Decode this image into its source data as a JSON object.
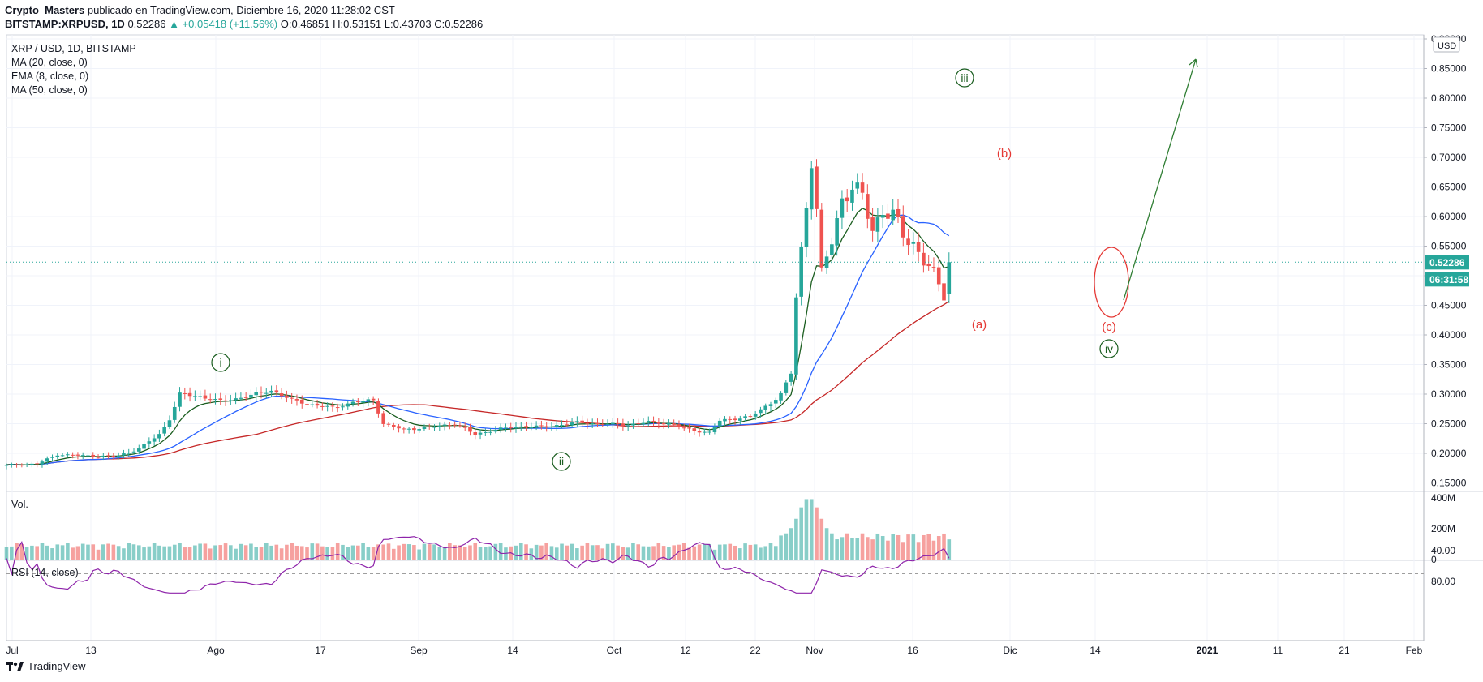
{
  "header": {
    "author": "Crypto_Masters",
    "published": "publicado en TradingView.com, Diciembre 16, 2020 11:28:02 CST",
    "symbol": "BITSTAMP:XRPUSD, 1D",
    "last": "0.52286",
    "change": "▲ +0.05418 (+11.56%)",
    "open": "O:0.46851",
    "high": "H:0.53151",
    "low": "L:0.43703",
    "close": "C:0.52286"
  },
  "legend": {
    "pair": "XRP / USD, 1D, BITSTAMP",
    "ma20": "MA (20, close, 0)",
    "ema8": "EMA (8, close, 0)",
    "ma50": "MA (50, close, 0)"
  },
  "volume_label": "Vol.",
  "rsi_label": "RSI (14, close)",
  "footer": {
    "brand": "TradingView"
  },
  "colors": {
    "up": "#26a69a",
    "down": "#ef5350",
    "ma20": "#2962ff",
    "ema8": "#1b5e20",
    "ma50": "#c62828",
    "rsi": "#8e24aa"
  },
  "chart_data": {
    "type": "candlestick",
    "currency": "USD",
    "price_axis": {
      "ylim": [
        0.15,
        0.9
      ],
      "ticks": [
        "0.15000",
        "0.20000",
        "0.25000",
        "0.30000",
        "0.35000",
        "0.40000",
        "0.45000",
        "0.50000",
        "0.55000",
        "0.60000",
        "0.65000",
        "0.70000",
        "0.75000",
        "0.80000",
        "0.85000",
        "0.90000"
      ]
    },
    "last_price_label": "0.52286",
    "countdown_label": "06:31:58",
    "volume_axis": {
      "ticks": [
        "0",
        "200M",
        "400M"
      ]
    },
    "rsi_axis": {
      "ticks": [
        "40.00",
        "80.00"
      ],
      "band": [
        30,
        70
      ]
    },
    "x_ticks": [
      "Jul",
      "13",
      "Ago",
      "17",
      "Sep",
      "14",
      "Oct",
      "12",
      "22",
      "Nov",
      "16",
      "Dic",
      "14",
      "2021",
      "11",
      "21",
      "Feb"
    ],
    "wave_labels": [
      "i",
      "ii",
      "iii",
      "iv"
    ],
    "correction_labels": [
      "(a)",
      "(b)",
      "(c)"
    ],
    "anchors": [
      {
        "day": 0,
        "c": 0.18
      },
      {
        "day": 6,
        "c": 0.182
      },
      {
        "day": 10,
        "c": 0.198
      },
      {
        "day": 18,
        "c": 0.195
      },
      {
        "day": 22,
        "c": 0.196
      },
      {
        "day": 26,
        "c": 0.208
      },
      {
        "day": 30,
        "c": 0.232
      },
      {
        "day": 32,
        "c": 0.258
      },
      {
        "day": 34,
        "c": 0.3
      },
      {
        "day": 38,
        "c": 0.296
      },
      {
        "day": 42,
        "c": 0.288
      },
      {
        "day": 46,
        "c": 0.294
      },
      {
        "day": 52,
        "c": 0.306
      },
      {
        "day": 56,
        "c": 0.29
      },
      {
        "day": 60,
        "c": 0.282
      },
      {
        "day": 64,
        "c": 0.277
      },
      {
        "day": 68,
        "c": 0.286
      },
      {
        "day": 72,
        "c": 0.29
      },
      {
        "day": 74,
        "c": 0.25
      },
      {
        "day": 78,
        "c": 0.24
      },
      {
        "day": 84,
        "c": 0.245
      },
      {
        "day": 88,
        "c": 0.25
      },
      {
        "day": 92,
        "c": 0.232
      },
      {
        "day": 96,
        "c": 0.24
      },
      {
        "day": 100,
        "c": 0.245
      },
      {
        "day": 106,
        "c": 0.245
      },
      {
        "day": 112,
        "c": 0.252
      },
      {
        "day": 116,
        "c": 0.25
      },
      {
        "day": 122,
        "c": 0.248
      },
      {
        "day": 126,
        "c": 0.253
      },
      {
        "day": 130,
        "c": 0.25
      },
      {
        "day": 134,
        "c": 0.24
      },
      {
        "day": 138,
        "c": 0.235
      },
      {
        "day": 140,
        "c": 0.255
      },
      {
        "day": 146,
        "c": 0.262
      },
      {
        "day": 150,
        "c": 0.285
      },
      {
        "day": 152,
        "c": 0.3
      },
      {
        "day": 154,
        "c": 0.335
      },
      {
        "day": 155,
        "c": 0.465
      },
      {
        "day": 157,
        "c": 0.62
      },
      {
        "day": 158,
        "c": 0.7
      },
      {
        "day": 159,
        "c": 0.61
      },
      {
        "day": 160,
        "c": 0.5
      },
      {
        "day": 162,
        "c": 0.56
      },
      {
        "day": 164,
        "c": 0.63
      },
      {
        "day": 166,
        "c": 0.65
      },
      {
        "day": 168,
        "c": 0.63
      },
      {
        "day": 170,
        "c": 0.58
      },
      {
        "day": 172,
        "c": 0.61
      },
      {
        "day": 174,
        "c": 0.6
      },
      {
        "day": 176,
        "c": 0.57
      },
      {
        "day": 178,
        "c": 0.555
      },
      {
        "day": 180,
        "c": 0.525
      },
      {
        "day": 182,
        "c": 0.5
      },
      {
        "day": 184,
        "c": 0.47
      },
      {
        "day": 185,
        "c": 0.52286
      }
    ]
  }
}
